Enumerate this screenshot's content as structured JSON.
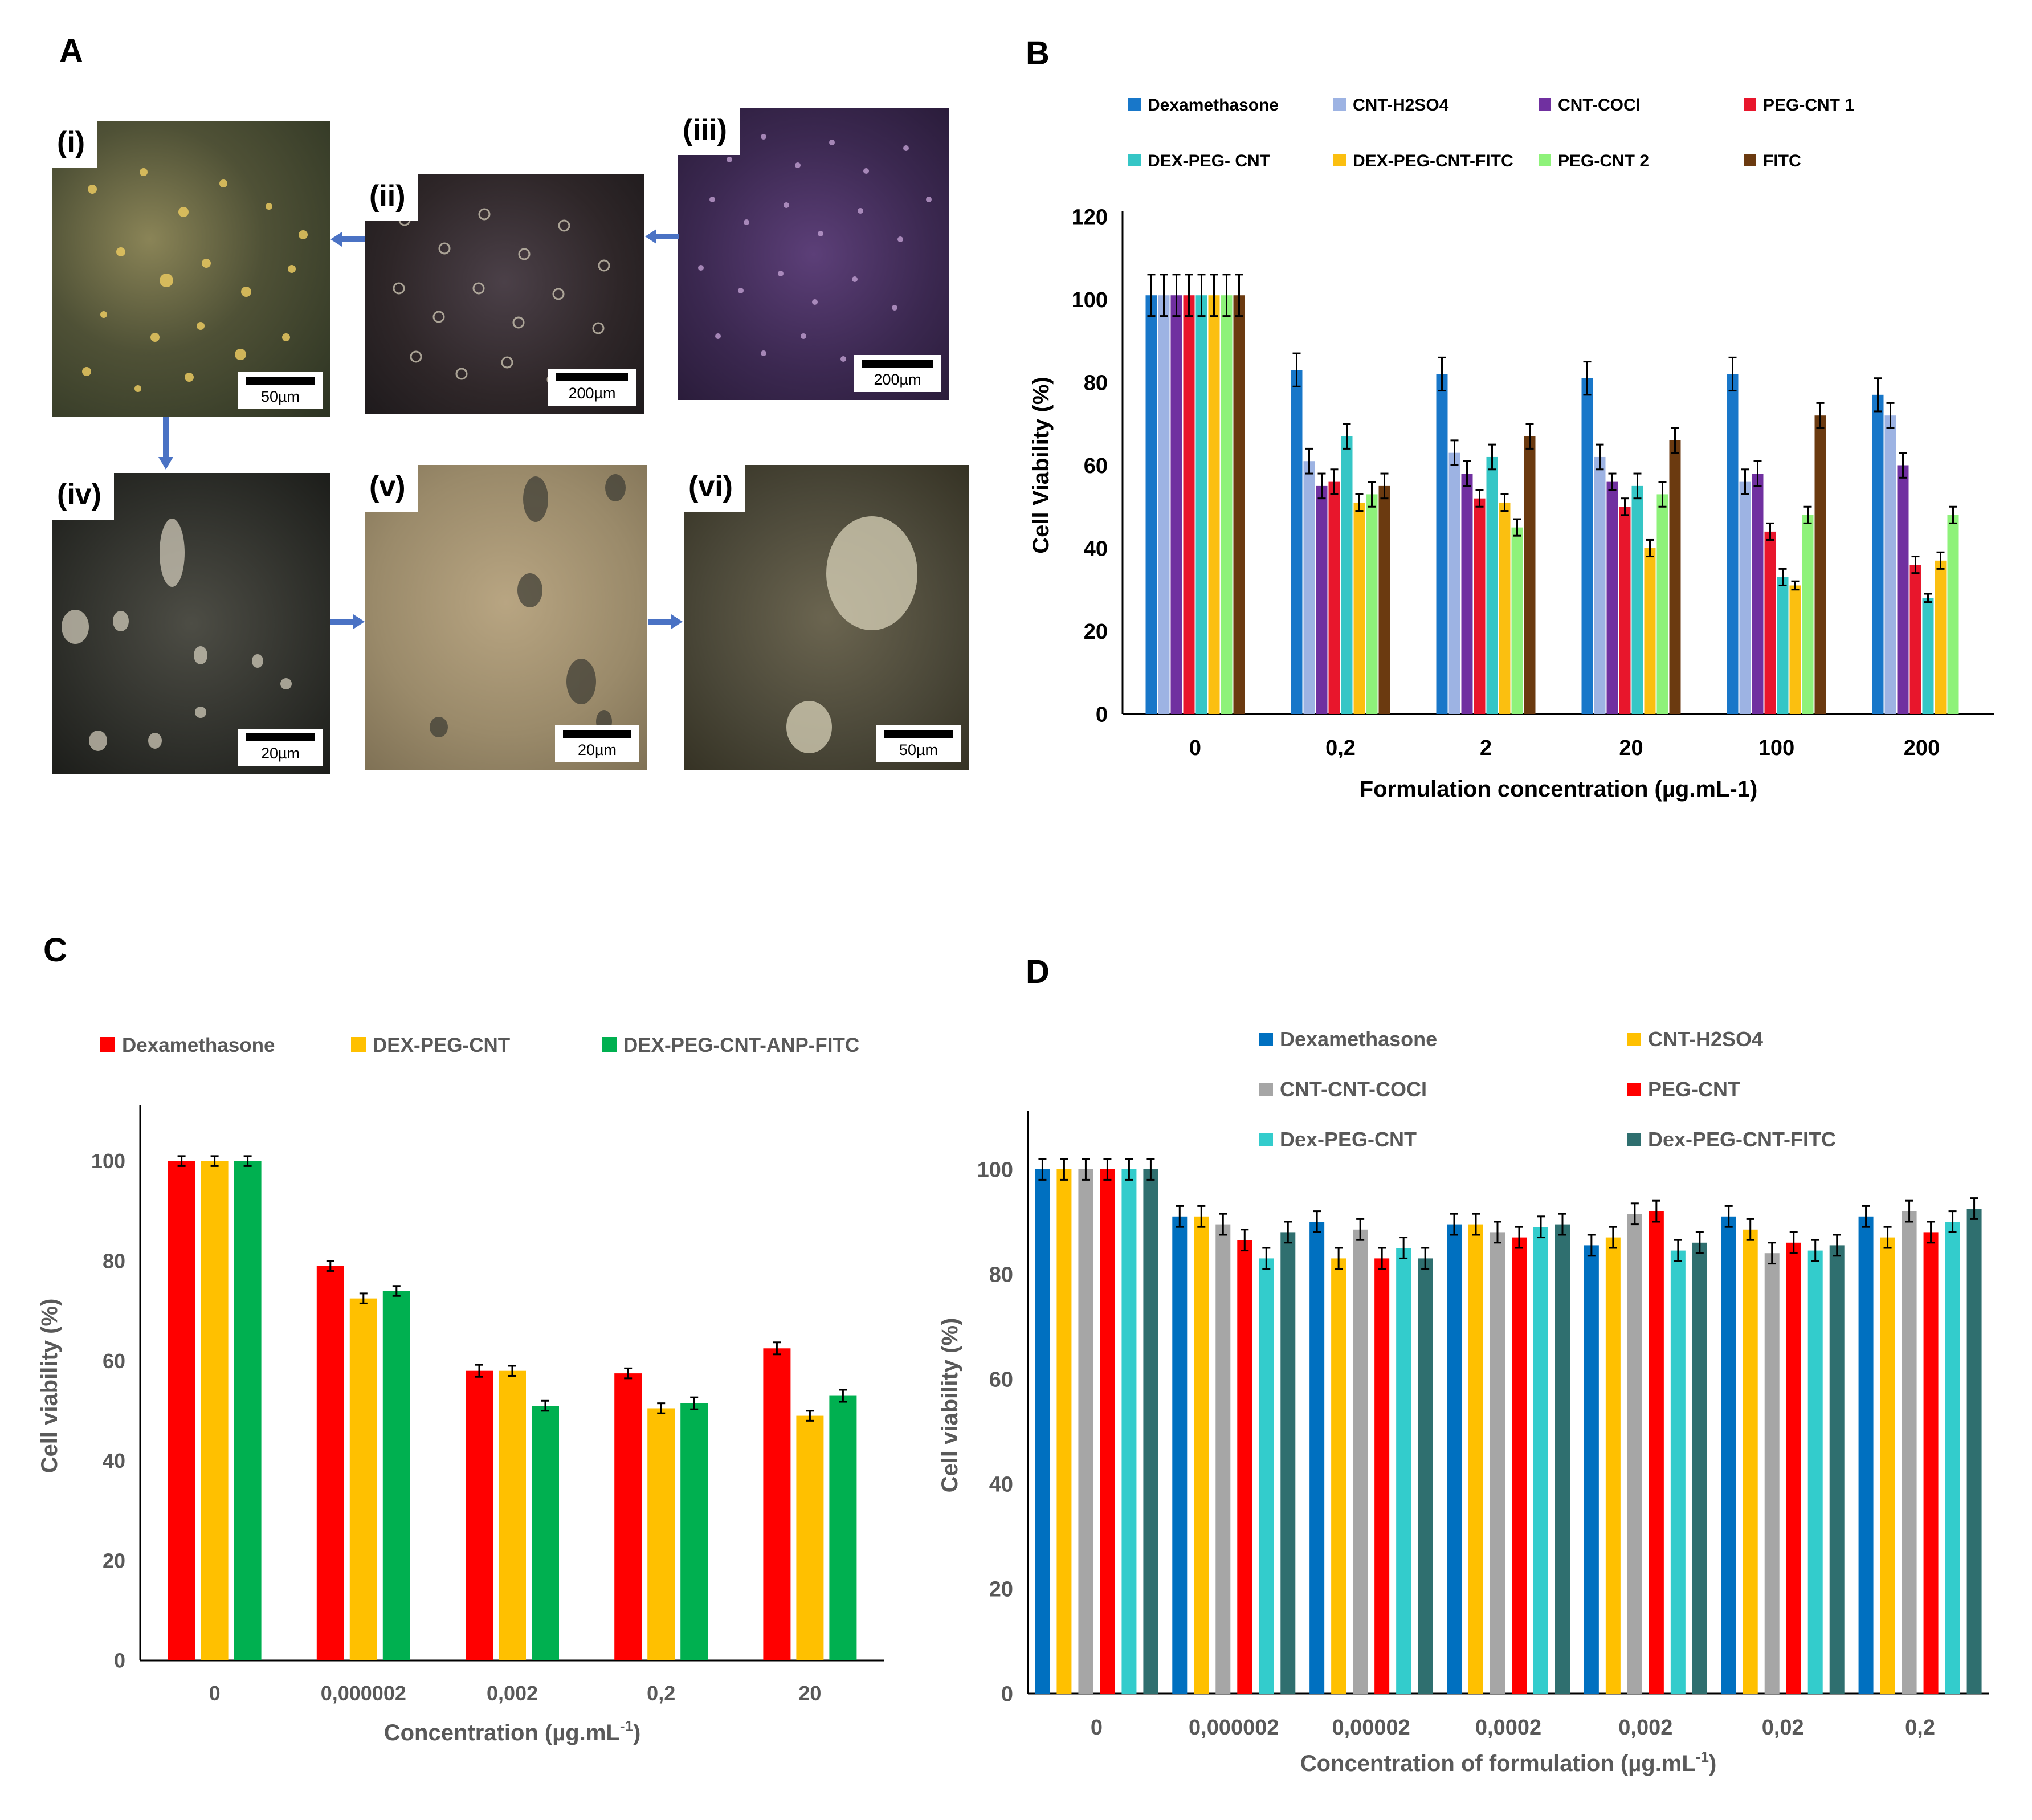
{
  "panels": {
    "A": {
      "label": "A"
    },
    "B": {
      "label": "B"
    },
    "C": {
      "label": "C"
    },
    "D": {
      "label": "D"
    }
  },
  "micrographs": [
    {
      "id": "i",
      "tag": "(i)",
      "scale": "50µm"
    },
    {
      "id": "ii",
      "tag": "(ii)",
      "scale": "200µm"
    },
    {
      "id": "iii",
      "tag": "(iii)",
      "scale": "200µm"
    },
    {
      "id": "iv",
      "tag": "(iv)",
      "scale": "20µm"
    },
    {
      "id": "v",
      "tag": "(v)",
      "scale": "20µm"
    },
    {
      "id": "vi",
      "tag": "(vi)",
      "scale": "50µm"
    }
  ],
  "chart_data": [
    {
      "panel": "B",
      "type": "bar",
      "title": "",
      "xlabel": "Formulation  concentration  (µg.mL-1)",
      "ylabel": "Cell Viability  (%)",
      "ylim": [
        0,
        120
      ],
      "yticks": [
        "0",
        "20",
        "40",
        "60",
        "80",
        "100",
        "120"
      ],
      "categories": [
        "0",
        "0,2",
        "2",
        "20",
        "100",
        "200"
      ],
      "legend_position": "top",
      "series": [
        {
          "name": "Dexamethasone",
          "color": "#1877c9",
          "values": [
            101,
            83,
            82,
            81,
            82,
            77
          ],
          "errors": [
            5,
            4,
            4,
            4,
            4,
            4
          ]
        },
        {
          "name": "CNT-H2SO4",
          "color": "#9db3e3",
          "values": [
            101,
            61,
            63,
            62,
            56,
            72
          ],
          "errors": [
            5,
            3,
            3,
            3,
            3,
            3
          ]
        },
        {
          "name": "CNT-COCl",
          "color": "#7030a0",
          "values": [
            101,
            55,
            58,
            56,
            58,
            60
          ],
          "errors": [
            5,
            3,
            3,
            2,
            3,
            3
          ]
        },
        {
          "name": "PEG-CNT 1",
          "color": "#e8162c",
          "values": [
            101,
            56,
            52,
            50,
            44,
            36
          ],
          "errors": [
            5,
            3,
            2,
            2,
            2,
            2
          ]
        },
        {
          "name": "DEX-PEG- CNT",
          "color": "#35c6c6",
          "values": [
            101,
            67,
            62,
            55,
            33,
            28
          ],
          "errors": [
            5,
            3,
            3,
            3,
            2,
            1
          ]
        },
        {
          "name": "DEX-PEG-CNT-FITC",
          "color": "#fbbf10",
          "values": [
            101,
            51,
            51,
            40,
            31,
            37
          ],
          "errors": [
            5,
            2,
            2,
            2,
            1,
            2
          ]
        },
        {
          "name": "PEG-CNT 2",
          "color": "#8ef27a",
          "values": [
            101,
            53,
            45,
            53,
            48,
            48
          ],
          "errors": [
            5,
            3,
            2,
            3,
            2,
            2
          ]
        },
        {
          "name": "FITC",
          "color": "#6b3a10",
          "values": [
            101,
            55,
            67,
            66,
            72,
            null
          ],
          "errors": [
            5,
            3,
            3,
            3,
            3,
            null
          ]
        }
      ]
    },
    {
      "panel": "C",
      "type": "bar",
      "title": "",
      "xlabel": "Concentration (µg.mL",
      "xlabel_sup": "-1",
      "xlabel_end": ")",
      "ylabel": "Cell viability (%)",
      "ylim": [
        0,
        110
      ],
      "yticks": [
        "0",
        "20",
        "40",
        "60",
        "80",
        "100"
      ],
      "categories": [
        "0",
        "0,000002",
        "0,002",
        "0,2",
        "20"
      ],
      "legend_position": "top",
      "series": [
        {
          "name": "Dexamethasone",
          "color": "#ff0000",
          "values": [
            100,
            79,
            58,
            57.5,
            62.5
          ],
          "errors": [
            1,
            1,
            1.2,
            1,
            1.2
          ]
        },
        {
          "name": "DEX-PEG-CNT",
          "color": "#ffc000",
          "values": [
            100,
            72.5,
            58,
            50.5,
            49
          ],
          "errors": [
            1,
            1,
            1,
            1,
            1
          ]
        },
        {
          "name": "DEX-PEG-CNT-ANP-FITC",
          "color": "#00b050",
          "values": [
            100,
            74,
            51,
            51.5,
            53
          ],
          "errors": [
            1,
            1,
            1,
            1.2,
            1.2
          ]
        }
      ]
    },
    {
      "panel": "D",
      "type": "bar",
      "title": "",
      "xlabel": "Concentration  of formulation  (µg.mL",
      "xlabel_sup": "-1",
      "xlabel_end": ")",
      "ylabel": "Cell viability  (%)",
      "ylim": [
        0,
        110
      ],
      "yticks": [
        "0",
        "20",
        "40",
        "60",
        "80",
        "100"
      ],
      "categories": [
        "0",
        "0,000002",
        "0,00002",
        "0,0002",
        "0,002",
        "0,02",
        "0,2"
      ],
      "legend_position": "top",
      "series": [
        {
          "name": "Dexamethasone",
          "color": "#0070c0",
          "values": [
            100,
            91,
            90,
            89.5,
            85.5,
            91,
            91
          ],
          "errors": [
            2,
            2,
            2,
            2,
            2,
            2,
            2
          ]
        },
        {
          "name": "CNT-H2SO4",
          "color": "#ffc000",
          "values": [
            100,
            91,
            83,
            89.5,
            87,
            88.5,
            87
          ],
          "errors": [
            2,
            2,
            2,
            2,
            2,
            2,
            2
          ]
        },
        {
          "name": "CNT-CNT-COCI",
          "color": "#a6a6a6",
          "values": [
            100,
            89.5,
            88.5,
            88,
            91.5,
            84,
            92
          ],
          "errors": [
            2,
            2,
            2,
            2,
            2,
            2,
            2
          ]
        },
        {
          "name": "PEG-CNT",
          "color": "#ff0000",
          "values": [
            100,
            86.5,
            83,
            87,
            92,
            86,
            88
          ],
          "errors": [
            2,
            2,
            2,
            2,
            2,
            2,
            2
          ]
        },
        {
          "name": "Dex-PEG-CNT",
          "color": "#33cccc",
          "values": [
            100,
            83,
            85,
            89,
            84.5,
            84.5,
            90
          ],
          "errors": [
            2,
            2,
            2,
            2,
            2,
            2,
            2
          ]
        },
        {
          "name": "Dex-PEG-CNT-FITC",
          "color": "#2f6f6f",
          "values": [
            100,
            88,
            83,
            89.5,
            86,
            85.5,
            92.5
          ],
          "errors": [
            2,
            2,
            2,
            2,
            2,
            2,
            2
          ]
        }
      ]
    }
  ]
}
